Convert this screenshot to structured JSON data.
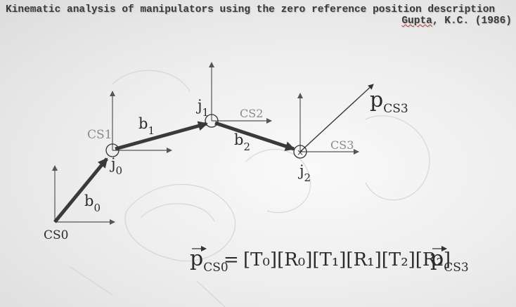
{
  "header": {
    "title": "Kinematic analysis of manipulators using the zero reference position description",
    "citation_author": "Gupta",
    "citation_rest": ", K.C. (1986)"
  },
  "diagram": {
    "frames": {
      "cs0": "CS0",
      "cs1": "CS1",
      "cs2": "CS2",
      "cs3": "CS3"
    },
    "joints": {
      "j0_base": "j",
      "j0_sub": "0",
      "j1_base": "j",
      "j1_sub": "1",
      "j2_base": "j",
      "j2_sub": "2"
    },
    "links": {
      "b0_base": "b",
      "b0_sub": "0",
      "b1_base": "b",
      "b1_sub": "1",
      "b2_base": "b",
      "b2_sub": "2"
    },
    "point": {
      "base": "p",
      "sub": "CS3"
    },
    "equation": {
      "lhs_base": "p",
      "lhs_sub": "CS0",
      "equals": "=",
      "T0": "[T₀]",
      "R0": "[R₀]",
      "T1": "[T₁]",
      "R1": "[R₁]",
      "T2": "[T₂]",
      "R2": "[R₂]",
      "rhs_base": "p",
      "rhs_sub": "CS3"
    },
    "colors": {
      "link": "#3a3a3a",
      "axis": "#555555",
      "frame_label": "#8a8a8a",
      "text": "#2a2a2a"
    }
  }
}
